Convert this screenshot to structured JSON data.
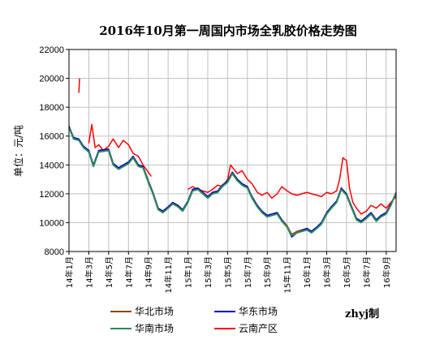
{
  "chart_data": {
    "type": "line",
    "title": "2016年10月第一周国内市场全乳胶价格走势图",
    "ylabel": "单位：元/吨",
    "ylim": [
      8000,
      22000
    ],
    "yticks": [
      "22000",
      "20000",
      "18000",
      "16000",
      "14000",
      "12000",
      "10000",
      "8000"
    ],
    "grid": true,
    "legend_placement": "bottom",
    "note": "zhyj制",
    "x_tick_labels": [
      "14年1月",
      "14年3月",
      "14年5月",
      "14年7月",
      "14年9月",
      "14年11月",
      "15年1月",
      "15年3月",
      "15年5月",
      "15年7月",
      "15年9月",
      "15年11月",
      "16年1月",
      "16年3月",
      "16年5月",
      "16年7月",
      "16年9月"
    ],
    "x_months": [
      "2014-01",
      "2014-03",
      "2014-05",
      "2014-07",
      "2014-09",
      "2014-11",
      "2015-01",
      "2015-03",
      "2015-05",
      "2015-07",
      "2015-09",
      "2015-11",
      "2016-01",
      "2016-03",
      "2016-05",
      "2016-07",
      "2016-09"
    ],
    "x_range": [
      "2014-01",
      "2016-10"
    ],
    "series": [
      {
        "name": "华北市场",
        "color": "#8b4513",
        "points": [
          [
            "2014-01",
            16600
          ],
          [
            "2014-01-15",
            15800
          ],
          [
            "2014-02",
            15700
          ],
          [
            "2014-02-15",
            15300
          ],
          [
            "2014-03",
            15000
          ],
          [
            "2014-03-15",
            14000
          ],
          [
            "2014-04",
            15000
          ],
          [
            "2014-05",
            15100
          ],
          [
            "2014-05-15",
            14100
          ],
          [
            "2014-06",
            13800
          ],
          [
            "2014-07",
            14200
          ],
          [
            "2014-07-15",
            14600
          ],
          [
            "2014-08",
            14000
          ],
          [
            "2014-08-15",
            13900
          ],
          [
            "2014-09",
            12900
          ],
          [
            "2014-09-15",
            12100
          ],
          [
            "2014-10",
            11000
          ],
          [
            "2014-10-15",
            10800
          ],
          [
            "2014-11",
            11100
          ],
          [
            "2014-11-15",
            11400
          ],
          [
            "2014-12",
            11200
          ],
          [
            "2014-12-15",
            10800
          ],
          [
            "2015-01",
            11500
          ],
          [
            "2015-01-15",
            12300
          ],
          [
            "2015-02",
            12400
          ],
          [
            "2015-03",
            11800
          ],
          [
            "2015-03-15",
            12100
          ],
          [
            "2015-04",
            12200
          ],
          [
            "2015-04-15",
            12600
          ],
          [
            "2015-05",
            12900
          ],
          [
            "2015-05-15",
            13500
          ],
          [
            "2015-06",
            13000
          ],
          [
            "2015-06-15",
            12700
          ],
          [
            "2015-07",
            12500
          ],
          [
            "2015-07-15",
            11800
          ],
          [
            "2015-08",
            11200
          ],
          [
            "2015-08-15",
            10800
          ],
          [
            "2015-09",
            10500
          ],
          [
            "2015-09-15",
            10600
          ],
          [
            "2015-10",
            10700
          ],
          [
            "2015-10-15",
            10200
          ],
          [
            "2015-11",
            9800
          ],
          [
            "2015-11-15",
            9200
          ],
          [
            "2015-12",
            9400
          ],
          [
            "2016-01",
            9600
          ],
          [
            "2016-01-15",
            9400
          ],
          [
            "2016-02",
            9700
          ],
          [
            "2016-02-15",
            10000
          ],
          [
            "2016-03",
            10700
          ],
          [
            "2016-03-15",
            11100
          ],
          [
            "2016-04",
            11500
          ],
          [
            "2016-04-15",
            12400
          ],
          [
            "2016-05",
            12000
          ],
          [
            "2016-05-15",
            11200
          ],
          [
            "2016-06",
            10300
          ],
          [
            "2016-06-15",
            10100
          ],
          [
            "2016-07",
            10400
          ],
          [
            "2016-07-15",
            10700
          ],
          [
            "2016-08",
            10200
          ],
          [
            "2016-08-15",
            10500
          ],
          [
            "2016-09",
            10700
          ],
          [
            "2016-09-15",
            11300
          ],
          [
            "2016-10",
            12000
          ]
        ]
      },
      {
        "name": "华东市场",
        "color": "#0000cc",
        "points": [
          [
            "2014-01",
            16700
          ],
          [
            "2014-01-15",
            15900
          ],
          [
            "2014-02",
            15800
          ],
          [
            "2014-02-15",
            15300
          ],
          [
            "2014-03",
            15000
          ],
          [
            "2014-03-15",
            14000
          ],
          [
            "2014-04",
            15000
          ],
          [
            "2014-05",
            15100
          ],
          [
            "2014-05-15",
            14100
          ],
          [
            "2014-06",
            13800
          ],
          [
            "2014-07",
            14200
          ],
          [
            "2014-07-15",
            14600
          ],
          [
            "2014-08",
            14000
          ],
          [
            "2014-08-15",
            13900
          ],
          [
            "2014-09",
            12900
          ],
          [
            "2014-09-15",
            12100
          ],
          [
            "2014-10",
            11000
          ],
          [
            "2014-10-15",
            10800
          ],
          [
            "2014-11",
            11100
          ],
          [
            "2014-11-15",
            11400
          ],
          [
            "2014-12",
            11200
          ],
          [
            "2014-12-15",
            10900
          ],
          [
            "2015-01",
            11500
          ],
          [
            "2015-01-15",
            12300
          ],
          [
            "2015-02",
            12400
          ],
          [
            "2015-03",
            11800
          ],
          [
            "2015-03-15",
            12100
          ],
          [
            "2015-04",
            12200
          ],
          [
            "2015-04-15",
            12600
          ],
          [
            "2015-05",
            12900
          ],
          [
            "2015-05-15",
            13500
          ],
          [
            "2015-06",
            13000
          ],
          [
            "2015-06-15",
            12700
          ],
          [
            "2015-07",
            12500
          ],
          [
            "2015-07-15",
            11800
          ],
          [
            "2015-08",
            11200
          ],
          [
            "2015-08-15",
            10800
          ],
          [
            "2015-09",
            10500
          ],
          [
            "2015-09-15",
            10600
          ],
          [
            "2015-10",
            10700
          ],
          [
            "2015-10-15",
            10200
          ],
          [
            "2015-11",
            9700
          ],
          [
            "2015-11-15",
            9000
          ],
          [
            "2015-12",
            9300
          ],
          [
            "2016-01",
            9600
          ],
          [
            "2016-01-15",
            9400
          ],
          [
            "2016-02",
            9700
          ],
          [
            "2016-02-15",
            10000
          ],
          [
            "2016-03",
            10700
          ],
          [
            "2016-03-15",
            11100
          ],
          [
            "2016-04",
            11500
          ],
          [
            "2016-04-15",
            12400
          ],
          [
            "2016-05",
            12000
          ],
          [
            "2016-05-15",
            11200
          ],
          [
            "2016-06",
            10300
          ],
          [
            "2016-06-15",
            10100
          ],
          [
            "2016-07",
            10400
          ],
          [
            "2016-07-15",
            10700
          ],
          [
            "2016-08",
            10200
          ],
          [
            "2016-08-15",
            10500
          ],
          [
            "2016-09",
            10700
          ],
          [
            "2016-09-15",
            11300
          ],
          [
            "2016-10",
            12000
          ]
        ]
      },
      {
        "name": "华南市场",
        "color": "#2e8b57",
        "points": [
          [
            "2014-01",
            16600
          ],
          [
            "2014-01-15",
            15800
          ],
          [
            "2014-02",
            15700
          ],
          [
            "2014-02-15",
            15200
          ],
          [
            "2014-03",
            14900
          ],
          [
            "2014-03-15",
            13900
          ],
          [
            "2014-04",
            14900
          ],
          [
            "2014-05",
            15000
          ],
          [
            "2014-05-15",
            14000
          ],
          [
            "2014-06",
            13700
          ],
          [
            "2014-07",
            14100
          ],
          [
            "2014-07-15",
            14500
          ],
          [
            "2014-08",
            13900
          ],
          [
            "2014-08-15",
            13800
          ],
          [
            "2014-09",
            12800
          ],
          [
            "2014-09-15",
            12000
          ],
          [
            "2014-10",
            10900
          ],
          [
            "2014-10-15",
            10700
          ],
          [
            "2014-11",
            11000
          ],
          [
            "2014-11-15",
            11300
          ],
          [
            "2014-12",
            11100
          ],
          [
            "2014-12-15",
            10800
          ],
          [
            "2015-01",
            11400
          ],
          [
            "2015-01-15",
            12200
          ],
          [
            "2015-02",
            12300
          ],
          [
            "2015-03",
            11700
          ],
          [
            "2015-03-15",
            12000
          ],
          [
            "2015-04",
            12100
          ],
          [
            "2015-04-15",
            12500
          ],
          [
            "2015-05",
            12800
          ],
          [
            "2015-05-15",
            13400
          ],
          [
            "2015-06",
            12900
          ],
          [
            "2015-06-15",
            12600
          ],
          [
            "2015-07",
            12400
          ],
          [
            "2015-07-15",
            11700
          ],
          [
            "2015-08",
            11100
          ],
          [
            "2015-08-15",
            10700
          ],
          [
            "2015-09",
            10400
          ],
          [
            "2015-09-15",
            10500
          ],
          [
            "2015-10",
            10600
          ],
          [
            "2015-10-15",
            10100
          ],
          [
            "2015-11",
            9700
          ],
          [
            "2015-11-15",
            9100
          ],
          [
            "2015-12",
            9300
          ],
          [
            "2016-01",
            9500
          ],
          [
            "2016-01-15",
            9300
          ],
          [
            "2016-02",
            9600
          ],
          [
            "2016-02-15",
            9900
          ],
          [
            "2016-03",
            10600
          ],
          [
            "2016-03-15",
            11000
          ],
          [
            "2016-04",
            11400
          ],
          [
            "2016-04-15",
            12300
          ],
          [
            "2016-05",
            11900
          ],
          [
            "2016-05-15",
            11100
          ],
          [
            "2016-06",
            10200
          ],
          [
            "2016-06-15",
            10000
          ],
          [
            "2016-07",
            10300
          ],
          [
            "2016-07-15",
            10600
          ],
          [
            "2016-08",
            10100
          ],
          [
            "2016-08-15",
            10400
          ],
          [
            "2016-09",
            10600
          ],
          [
            "2016-09-15",
            11200
          ],
          [
            "2016-10",
            12100
          ]
        ]
      },
      {
        "name": "云南产区",
        "color": "#ff0000",
        "points": [
          [
            "2014-02-01",
            19000
          ],
          [
            "2014-02-03",
            20000
          ],
          [
            "2014-02-10",
            null
          ],
          [
            "2014-03-01",
            15500
          ],
          [
            "2014-03-10",
            16800
          ],
          [
            "2014-03-20",
            15200
          ],
          [
            "2014-04",
            15400
          ],
          [
            "2014-04-15",
            15000
          ],
          [
            "2014-05",
            15300
          ],
          [
            "2014-05-15",
            15800
          ],
          [
            "2014-06",
            15200
          ],
          [
            "2014-06-15",
            15700
          ],
          [
            "2014-07",
            15400
          ],
          [
            "2014-07-15",
            14800
          ],
          [
            "2014-08",
            14600
          ],
          [
            "2014-08-15",
            14000
          ],
          [
            "2014-09",
            13500
          ],
          [
            "2014-09-10",
            13200
          ],
          [
            "2014-09-20",
            null
          ],
          [
            "2015-01",
            12300
          ],
          [
            "2015-01-15",
            12500
          ],
          [
            "2015-02",
            12300
          ],
          [
            "2015-03",
            12100
          ],
          [
            "2015-03-15",
            12300
          ],
          [
            "2015-04",
            12600
          ],
          [
            "2015-04-15",
            12500
          ],
          [
            "2015-05",
            13000
          ],
          [
            "2015-05-10",
            14000
          ],
          [
            "2015-05-20",
            13700
          ],
          [
            "2015-06",
            13400
          ],
          [
            "2015-06-15",
            13600
          ],
          [
            "2015-07",
            13000
          ],
          [
            "2015-07-15",
            12700
          ],
          [
            "2015-08",
            12100
          ],
          [
            "2015-08-15",
            11900
          ],
          [
            "2015-09",
            12100
          ],
          [
            "2015-09-15",
            11700
          ],
          [
            "2015-10",
            12000
          ],
          [
            "2015-10-15",
            12500
          ],
          [
            "2015-11",
            12200
          ],
          [
            "2015-11-15",
            12000
          ],
          [
            "2015-12",
            11900
          ],
          [
            "2016-01",
            12100
          ],
          [
            "2016-01-15",
            12000
          ],
          [
            "2016-02",
            11900
          ],
          [
            "2016-02-15",
            11800
          ],
          [
            "2016-03",
            12100
          ],
          [
            "2016-03-15",
            12000
          ],
          [
            "2016-04",
            12200
          ],
          [
            "2016-04-10",
            13000
          ],
          [
            "2016-04-20",
            14500
          ],
          [
            "2016-05",
            14300
          ],
          [
            "2016-05-10",
            12400
          ],
          [
            "2016-05-20",
            11400
          ],
          [
            "2016-06",
            11000
          ],
          [
            "2016-06-15",
            10600
          ],
          [
            "2016-07",
            10800
          ],
          [
            "2016-07-15",
            11200
          ],
          [
            "2016-08",
            11000
          ],
          [
            "2016-08-15",
            11300
          ],
          [
            "2016-09",
            11000
          ],
          [
            "2016-09-15",
            11400
          ],
          [
            "2016-10",
            11800
          ]
        ]
      }
    ]
  }
}
